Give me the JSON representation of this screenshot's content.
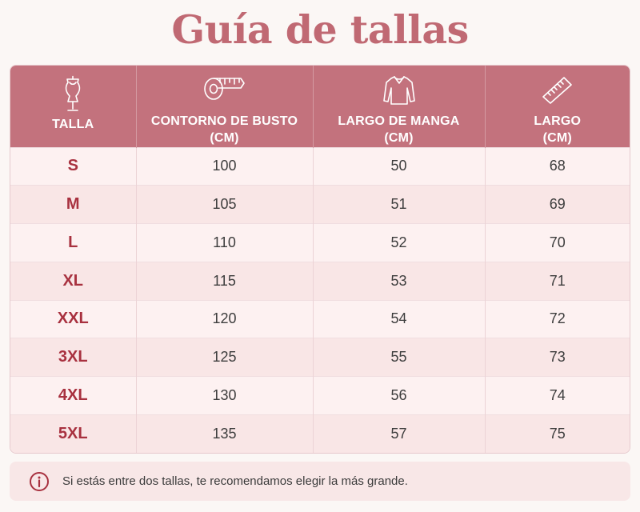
{
  "title": "Guía de tallas",
  "colors": {
    "accent": "#c06973",
    "header": "#c3727d",
    "size_text": "#a8313f"
  },
  "table": {
    "headers": [
      {
        "label": "TALLA",
        "unit": "",
        "icon": "dress-form-icon"
      },
      {
        "label": "CONTORNO DE BUSTO",
        "unit": "(CM)",
        "icon": "measuring-tape-icon"
      },
      {
        "label": "LARGO DE MANGA",
        "unit": "(CM)",
        "icon": "long-sleeve-shirt-icon"
      },
      {
        "label": "LARGO",
        "unit": "(CM)",
        "icon": "ruler-icon"
      }
    ],
    "rows": [
      [
        "S",
        "100",
        "50",
        "68"
      ],
      [
        "M",
        "105",
        "51",
        "69"
      ],
      [
        "L",
        "110",
        "52",
        "70"
      ],
      [
        "XL",
        "115",
        "53",
        "71"
      ],
      [
        "XXL",
        "120",
        "54",
        "72"
      ],
      [
        "3XL",
        "125",
        "55",
        "73"
      ],
      [
        "4XL",
        "130",
        "56",
        "74"
      ],
      [
        "5XL",
        "135",
        "57",
        "75"
      ]
    ]
  },
  "note": {
    "icon": "info-icon",
    "text": "Si estás entre dos tallas, te recomendamos elegir la más grande."
  }
}
